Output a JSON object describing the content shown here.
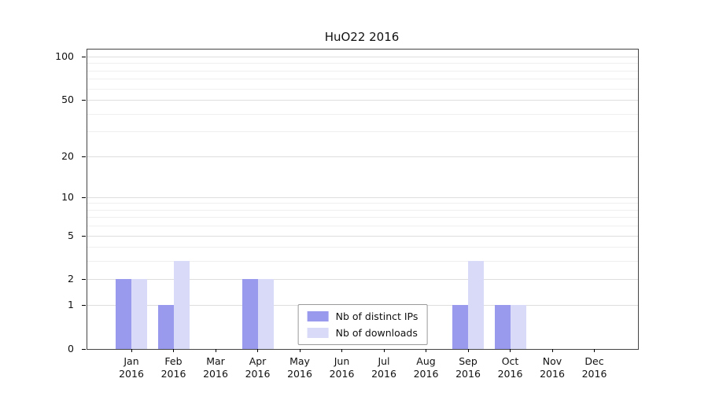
{
  "chart_data": {
    "type": "bar",
    "title": "HuO22 2016",
    "categories": [
      "Jan",
      "Feb",
      "Mar",
      "Apr",
      "May",
      "Jun",
      "Jul",
      "Aug",
      "Sep",
      "Oct",
      "Nov",
      "Dec"
    ],
    "x_sublabel": "2016",
    "series": [
      {
        "name": "Nb of distinct IPs",
        "color": "#9999ee",
        "values": [
          2,
          1,
          0,
          2,
          0,
          0,
          0,
          0,
          1,
          1,
          0,
          0
        ]
      },
      {
        "name": "Nb of downloads",
        "color": "#d9d9f8",
        "values": [
          2,
          3,
          0,
          2,
          0,
          0,
          0,
          0,
          3,
          1,
          0,
          0
        ]
      }
    ],
    "y_ticks": [
      0,
      1,
      2,
      5,
      10,
      20,
      50,
      100
    ],
    "y_scale": "log1p",
    "ylim": [
      0,
      100
    ],
    "grid": true,
    "legend_position": "lower center",
    "xlabel": "",
    "ylabel": ""
  },
  "colors": {
    "axis": "#000000",
    "grid_major": "#dedede",
    "grid_minor": "#efefef",
    "text": "#111111",
    "background": "#ffffff"
  }
}
